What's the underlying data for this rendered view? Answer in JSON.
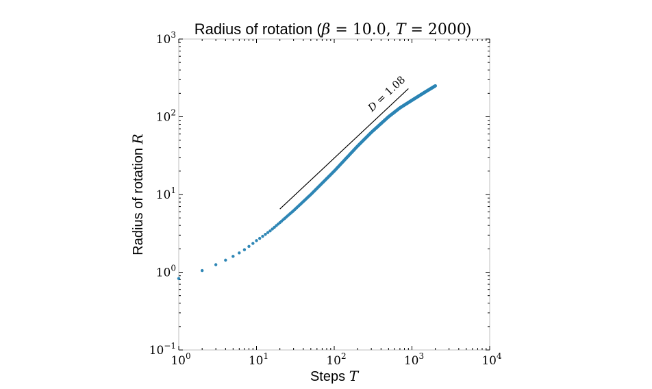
{
  "chart_data": {
    "type": "scatter",
    "title": "Radius of rotation (β = 10.0, T = 2000)",
    "title_parts": {
      "prefix": "Radius of rotation (",
      "beta": "β",
      "beta_val": " = 10.0, ",
      "t": "T",
      "t_val": " = 2000",
      "suffix": ")"
    },
    "xlabel": "Steps",
    "xlabel_var": "T",
    "ylabel": "Radius of rotation",
    "ylabel_var": "R",
    "x_scale": "log",
    "y_scale": "log",
    "xlim": [
      1,
      10000
    ],
    "ylim": [
      0.1,
      1000
    ],
    "x_ticks": [
      {
        "base": "10",
        "exp": "0",
        "value": 1
      },
      {
        "base": "10",
        "exp": "1",
        "value": 10
      },
      {
        "base": "10",
        "exp": "2",
        "value": 100
      },
      {
        "base": "10",
        "exp": "3",
        "value": 1000
      },
      {
        "base": "10",
        "exp": "4",
        "value": 10000
      }
    ],
    "y_ticks": [
      {
        "base": "10",
        "exp": "−1",
        "value": 0.1
      },
      {
        "base": "10",
        "exp": "0",
        "value": 1
      },
      {
        "base": "10",
        "exp": "1",
        "value": 10
      },
      {
        "base": "10",
        "exp": "2",
        "value": 100
      },
      {
        "base": "10",
        "exp": "3",
        "value": 1000
      }
    ],
    "grid": false,
    "series": [
      {
        "color": "#2e86b5",
        "x_range": [
          1,
          2000
        ],
        "points": [
          [
            1,
            0.83
          ],
          [
            2,
            1.05
          ],
          [
            3,
            1.25
          ],
          [
            4,
            1.43
          ],
          [
            5,
            1.6
          ],
          [
            6,
            1.77
          ],
          [
            7,
            1.95
          ],
          [
            8,
            2.15
          ],
          [
            9,
            2.35
          ],
          [
            10,
            2.55
          ],
          [
            12,
            2.9
          ],
          [
            15,
            3.4
          ],
          [
            20,
            4.35
          ],
          [
            30,
            6.2
          ],
          [
            50,
            10
          ],
          [
            100,
            20
          ],
          [
            200,
            42
          ],
          [
            300,
            63
          ],
          [
            500,
            100
          ],
          [
            700,
            130
          ],
          [
            1000,
            163
          ],
          [
            1500,
            210
          ],
          [
            2000,
            250
          ]
        ]
      }
    ],
    "reference_line": {
      "label": "D = 1.08",
      "label_var": "D",
      "label_val": " = 1.08",
      "slope": 1.08,
      "x": [
        20,
        900
      ],
      "y": [
        6.5,
        230
      ],
      "color": "#000000"
    }
  }
}
